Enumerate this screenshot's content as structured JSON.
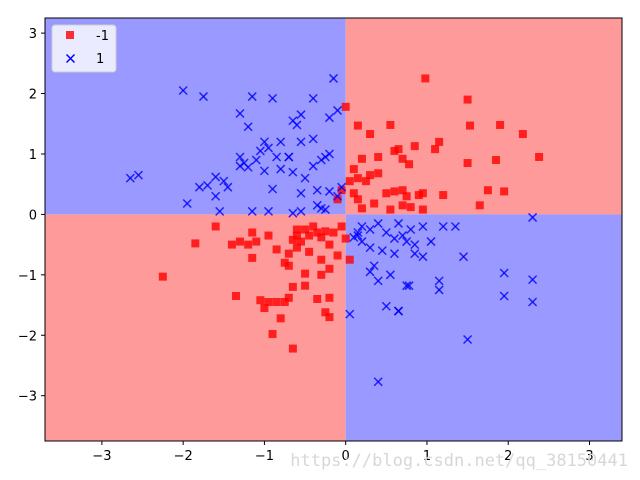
{
  "chart_data": {
    "type": "scatter",
    "title": "",
    "xlabel": "",
    "ylabel": "",
    "xlim": [
      -3.7,
      3.4
    ],
    "ylim": [
      -3.75,
      3.25
    ],
    "x_ticks": [
      -3,
      -2,
      -1,
      0,
      1,
      2,
      3
    ],
    "y_ticks": [
      -3,
      -2,
      -1,
      0,
      1,
      2,
      3
    ],
    "x_tick_labels": [
      "−3",
      "−2",
      "−1",
      "0",
      "1",
      "2",
      "3"
    ],
    "y_tick_labels": [
      "−3",
      "−2",
      "−1",
      "0",
      "1",
      "2",
      "3"
    ],
    "grid": false,
    "legend_position": "top-left",
    "colors": {
      "class_neg": "#ff0000",
      "class_pos": "#0000ff",
      "region_neg": "#ff9a9a",
      "region_pos": "#9999ff"
    },
    "decision_boundary": "product",
    "series": [
      {
        "name": "-1",
        "marker": "square",
        "color": "#ff0000",
        "points": [
          [
            0.0,
            1.78
          ],
          [
            0.15,
            1.47
          ],
          [
            0.3,
            1.33
          ],
          [
            0.55,
            1.48
          ],
          [
            0.65,
            1.08
          ],
          [
            0.85,
            1.13
          ],
          [
            1.15,
            1.2
          ],
          [
            1.1,
            1.08
          ],
          [
            0.7,
            0.92
          ],
          [
            0.78,
            0.83
          ],
          [
            0.6,
            1.05
          ],
          [
            0.4,
            0.95
          ],
          [
            0.2,
            0.92
          ],
          [
            0.1,
            0.75
          ],
          [
            0.3,
            0.65
          ],
          [
            0.4,
            0.68
          ],
          [
            0.5,
            0.35
          ],
          [
            0.6,
            0.38
          ],
          [
            0.7,
            0.4
          ],
          [
            0.75,
            0.3
          ],
          [
            0.9,
            0.32
          ],
          [
            0.95,
            0.35
          ],
          [
            1.2,
            0.32
          ],
          [
            0.8,
            0.12
          ],
          [
            0.7,
            0.15
          ],
          [
            0.55,
            0.08
          ],
          [
            0.95,
            0.08
          ],
          [
            0.35,
            0.18
          ],
          [
            0.2,
            0.1
          ],
          [
            0.15,
            0.25
          ],
          [
            0.1,
            0.35
          ],
          [
            0.05,
            0.55
          ],
          [
            0.15,
            0.6
          ],
          [
            0.25,
            0.55
          ],
          [
            0.98,
            2.25
          ],
          [
            1.5,
            1.9
          ],
          [
            1.53,
            1.47
          ],
          [
            1.9,
            1.48
          ],
          [
            2.18,
            1.33
          ],
          [
            2.38,
            0.95
          ],
          [
            1.85,
            0.9
          ],
          [
            1.5,
            0.85
          ],
          [
            1.75,
            0.4
          ],
          [
            1.95,
            0.38
          ],
          [
            1.65,
            0.15
          ],
          [
            -0.05,
            0.4
          ],
          [
            -0.1,
            0.25
          ],
          [
            -2.25,
            -1.03
          ],
          [
            -1.85,
            -0.48
          ],
          [
            -1.6,
            -0.2
          ],
          [
            -1.4,
            -0.5
          ],
          [
            -1.3,
            -0.45
          ],
          [
            -1.2,
            -0.5
          ],
          [
            -1.15,
            -0.3
          ],
          [
            -1.1,
            -0.45
          ],
          [
            -0.95,
            -0.35
          ],
          [
            -0.85,
            -0.58
          ],
          [
            -0.75,
            -0.8
          ],
          [
            -0.7,
            -0.65
          ],
          [
            -0.6,
            -0.35
          ],
          [
            -0.55,
            -0.45
          ],
          [
            -0.65,
            -0.42
          ],
          [
            -0.5,
            -0.25
          ],
          [
            -0.45,
            -0.35
          ],
          [
            -0.35,
            -0.3
          ],
          [
            -0.3,
            -0.38
          ],
          [
            -0.25,
            -0.28
          ],
          [
            -0.15,
            -0.3
          ],
          [
            -0.05,
            -0.2
          ],
          [
            -0.2,
            -0.5
          ],
          [
            -0.1,
            -0.68
          ],
          [
            0.0,
            -0.4
          ],
          [
            0.05,
            -0.75
          ],
          [
            -0.3,
            -0.75
          ],
          [
            -0.45,
            -0.62
          ],
          [
            -0.6,
            -0.55
          ],
          [
            -0.7,
            -0.85
          ],
          [
            -1.15,
            -0.72
          ],
          [
            -1.35,
            -1.35
          ],
          [
            -1.05,
            -1.42
          ],
          [
            -1.0,
            -1.55
          ],
          [
            -0.95,
            -1.45
          ],
          [
            -0.85,
            -1.45
          ],
          [
            -0.75,
            -1.45
          ],
          [
            -0.7,
            -1.38
          ],
          [
            -0.65,
            -1.2
          ],
          [
            -0.5,
            -0.98
          ],
          [
            -0.3,
            -1.0
          ],
          [
            -0.2,
            -0.9
          ],
          [
            -0.35,
            -1.4
          ],
          [
            -0.25,
            -1.62
          ],
          [
            -0.2,
            -1.7
          ],
          [
            -0.5,
            -1.18
          ],
          [
            -0.8,
            -1.72
          ],
          [
            -0.9,
            -1.98
          ],
          [
            -0.65,
            -2.22
          ],
          [
            -0.2,
            -1.38
          ],
          [
            -0.4,
            -0.2
          ],
          [
            -0.6,
            -0.25
          ]
        ]
      },
      {
        "name": "1",
        "marker": "x",
        "color": "#0000ff",
        "points": [
          [
            -2.0,
            2.05
          ],
          [
            -1.75,
            1.95
          ],
          [
            -1.15,
            1.95
          ],
          [
            -0.9,
            1.92
          ],
          [
            -0.55,
            1.65
          ],
          [
            -0.4,
            1.92
          ],
          [
            -0.6,
            1.48
          ],
          [
            -0.65,
            1.55
          ],
          [
            -0.15,
            2.25
          ],
          [
            -0.2,
            1.6
          ],
          [
            -0.1,
            1.72
          ],
          [
            -1.3,
            1.67
          ],
          [
            -1.2,
            1.45
          ],
          [
            -1.0,
            1.2
          ],
          [
            -1.05,
            1.05
          ],
          [
            -0.95,
            1.1
          ],
          [
            -0.85,
            0.95
          ],
          [
            -0.8,
            1.2
          ],
          [
            -0.7,
            0.95
          ],
          [
            -0.55,
            1.2
          ],
          [
            -0.7,
            0.95
          ],
          [
            -1.3,
            0.95
          ],
          [
            -1.25,
            0.85
          ],
          [
            -1.3,
            0.8
          ],
          [
            -1.2,
            0.78
          ],
          [
            -1.1,
            0.9
          ],
          [
            -1.0,
            0.72
          ],
          [
            -0.8,
            0.75
          ],
          [
            -0.65,
            0.7
          ],
          [
            -0.4,
            0.8
          ],
          [
            -0.25,
            0.95
          ],
          [
            -0.3,
            0.9
          ],
          [
            -0.2,
            1.0
          ],
          [
            -0.4,
            1.25
          ],
          [
            -0.5,
            0.6
          ],
          [
            -0.55,
            0.35
          ],
          [
            -0.35,
            0.4
          ],
          [
            -0.2,
            0.38
          ],
          [
            -0.05,
            0.45
          ],
          [
            -0.9,
            0.42
          ],
          [
            -1.6,
            0.62
          ],
          [
            -1.7,
            0.48
          ],
          [
            -1.8,
            0.45
          ],
          [
            -1.45,
            0.45
          ],
          [
            -1.6,
            0.3
          ],
          [
            -1.95,
            0.18
          ],
          [
            -1.55,
            0.05
          ],
          [
            -1.15,
            0.05
          ],
          [
            -0.95,
            0.05
          ],
          [
            -0.65,
            0.02
          ],
          [
            -0.55,
            0.05
          ],
          [
            -0.35,
            0.15
          ],
          [
            -0.3,
            0.1
          ],
          [
            -0.25,
            0.08
          ],
          [
            -0.1,
            0.3
          ],
          [
            -2.65,
            0.6
          ],
          [
            -2.55,
            0.65
          ],
          [
            -1.5,
            0.55
          ],
          [
            0.65,
            -0.15
          ],
          [
            0.8,
            -0.25
          ],
          [
            0.7,
            -0.35
          ],
          [
            0.6,
            -0.4
          ],
          [
            0.75,
            -0.45
          ],
          [
            0.85,
            -0.5
          ],
          [
            0.95,
            -0.2
          ],
          [
            1.05,
            -0.45
          ],
          [
            1.2,
            -0.2
          ],
          [
            1.35,
            -0.2
          ],
          [
            1.45,
            -0.7
          ],
          [
            0.95,
            -0.7
          ],
          [
            0.85,
            -0.65
          ],
          [
            0.6,
            -0.65
          ],
          [
            0.45,
            -0.6
          ],
          [
            0.35,
            -0.85
          ],
          [
            0.3,
            -0.95
          ],
          [
            0.4,
            -1.1
          ],
          [
            0.55,
            -1.0
          ],
          [
            0.3,
            -0.55
          ],
          [
            0.2,
            -0.45
          ],
          [
            0.1,
            -0.38
          ],
          [
            0.15,
            -0.3
          ],
          [
            0.2,
            -0.2
          ],
          [
            0.4,
            -0.15
          ],
          [
            0.3,
            -0.25
          ],
          [
            0.5,
            -0.3
          ],
          [
            1.15,
            -1.1
          ],
          [
            1.15,
            -1.25
          ],
          [
            1.95,
            -0.97
          ],
          [
            2.3,
            -1.08
          ],
          [
            1.95,
            -1.35
          ],
          [
            2.3,
            -1.45
          ],
          [
            2.3,
            -0.05
          ],
          [
            1.5,
            -2.07
          ],
          [
            0.65,
            -1.6
          ],
          [
            0.65,
            -1.6
          ],
          [
            0.5,
            -1.52
          ],
          [
            0.75,
            -1.18
          ],
          [
            0.78,
            -1.18
          ],
          [
            0.4,
            -2.77
          ],
          [
            0.05,
            -1.65
          ],
          [
            0.15,
            -0.35
          ]
        ]
      }
    ]
  },
  "legend": {
    "items": [
      {
        "label": "-1",
        "marker": "square",
        "color": "#ff0000"
      },
      {
        "label": "1",
        "marker": "x",
        "color": "#0000ff"
      }
    ]
  },
  "watermark": {
    "text": "https://blog.csdn.net/qq_38150441"
  }
}
